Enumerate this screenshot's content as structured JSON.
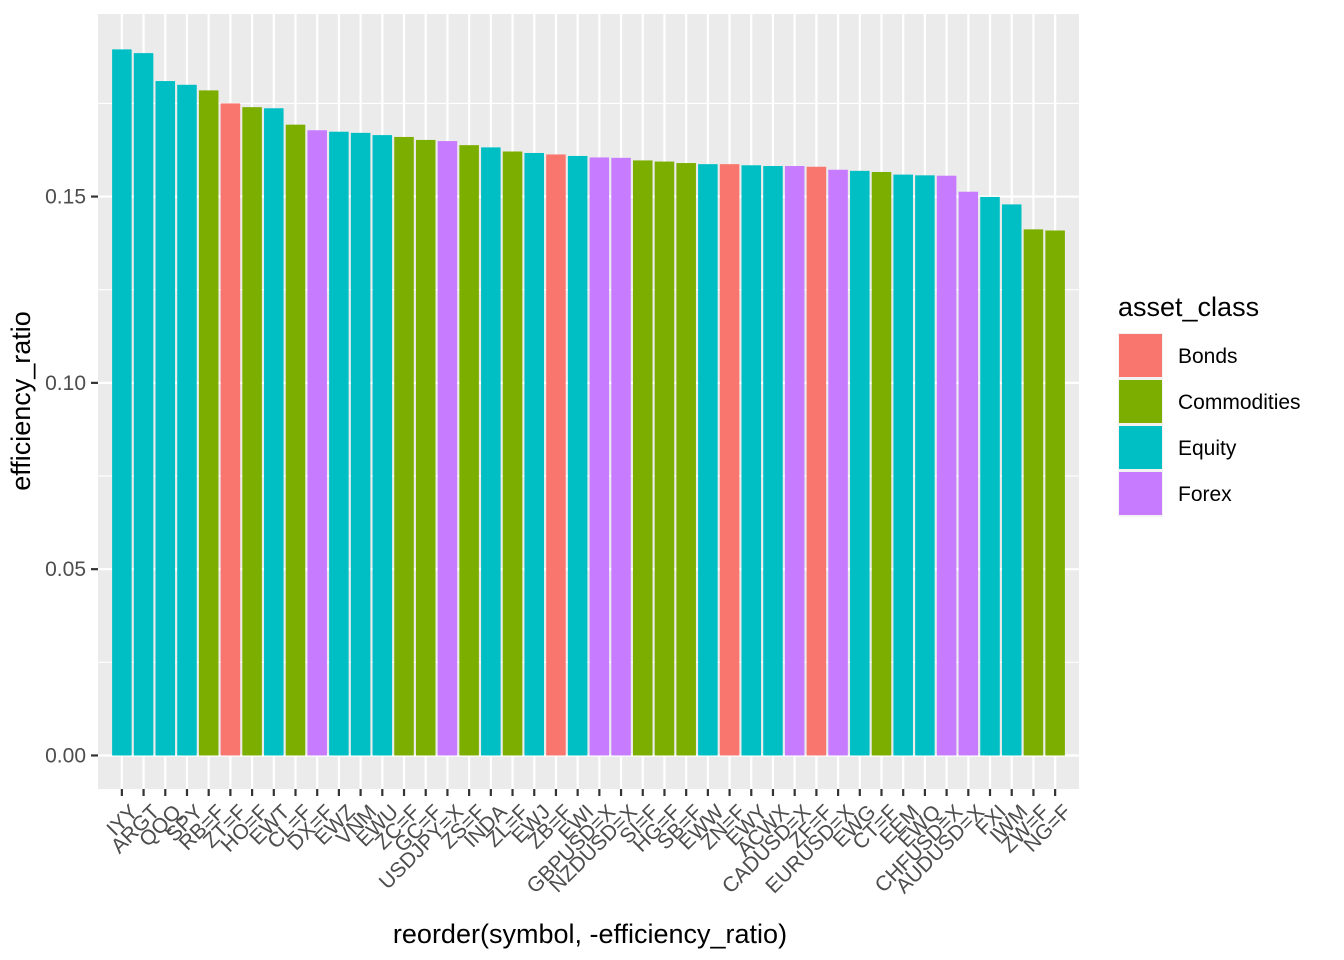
{
  "chart_data": {
    "type": "bar",
    "title": "",
    "xlabel": "reorder(symbol, -efficiency_ratio)",
    "ylabel": "efficiency_ratio",
    "ylim": [
      -0.009,
      0.199
    ],
    "yticks": [
      0.0,
      0.05,
      0.1,
      0.15
    ],
    "ytick_labels": [
      "0.00",
      "0.05",
      "0.10",
      "0.15"
    ],
    "grid": true,
    "legend": {
      "title": "asset_class",
      "position": "right",
      "entries": [
        {
          "name": "Bonds",
          "color": "#F8766D"
        },
        {
          "name": "Commodities",
          "color": "#7CAE00"
        },
        {
          "name": "Equity",
          "color": "#00BFC4"
        },
        {
          "name": "Forex",
          "color": "#C77CFF"
        }
      ]
    },
    "categories": [
      "IYY",
      "ARGT",
      "QQQ",
      "SPY",
      "RB=F",
      "ZT=F",
      "HO=F",
      "EWT",
      "CL=F",
      "DX=F",
      "EWZ",
      "VNM",
      "EWU",
      "ZC=F",
      "GC=F",
      "USDJPY=X",
      "ZS=F",
      "INDA",
      "ZL=F",
      "EWJ",
      "ZB=F",
      "EWI",
      "GBPUSD=X",
      "NZDUSD=X",
      "SI=F",
      "HG=F",
      "SB=F",
      "EWW",
      "ZN=F",
      "EWY",
      "ACWX",
      "CADUSD=X",
      "ZF=F",
      "EURUSD=X",
      "EWG",
      "CT=F",
      "EEM",
      "EWQ",
      "CHFUSD=X",
      "AUDUSD=X",
      "FXI",
      "IWM",
      "ZW=F",
      "NG=F"
    ],
    "values": [
      0.1895,
      0.1885,
      0.181,
      0.18,
      0.1785,
      0.175,
      0.174,
      0.1737,
      0.1693,
      0.1678,
      0.1674,
      0.1671,
      0.1665,
      0.166,
      0.1652,
      0.1649,
      0.1638,
      0.1632,
      0.1621,
      0.1617,
      0.1613,
      0.1609,
      0.1605,
      0.1604,
      0.1597,
      0.1594,
      0.159,
      0.1587,
      0.1587,
      0.1584,
      0.1582,
      0.1582,
      0.158,
      0.1572,
      0.1569,
      0.1566,
      0.1559,
      0.1557,
      0.1556,
      0.1513,
      0.1499,
      0.1479,
      0.1412,
      0.1409
    ],
    "classes": [
      "Equity",
      "Equity",
      "Equity",
      "Equity",
      "Commodities",
      "Bonds",
      "Commodities",
      "Equity",
      "Commodities",
      "Forex",
      "Equity",
      "Equity",
      "Equity",
      "Commodities",
      "Commodities",
      "Forex",
      "Commodities",
      "Equity",
      "Commodities",
      "Equity",
      "Bonds",
      "Equity",
      "Forex",
      "Forex",
      "Commodities",
      "Commodities",
      "Commodities",
      "Equity",
      "Bonds",
      "Equity",
      "Equity",
      "Forex",
      "Bonds",
      "Forex",
      "Equity",
      "Commodities",
      "Equity",
      "Equity",
      "Forex",
      "Forex",
      "Equity",
      "Equity",
      "Commodities",
      "Commodities"
    ]
  },
  "colors": {
    "panel_bg": "#EBEBEB",
    "grid_major": "#FFFFFF",
    "tick_color": "#333333",
    "tick_text": "#4D4D4D"
  }
}
